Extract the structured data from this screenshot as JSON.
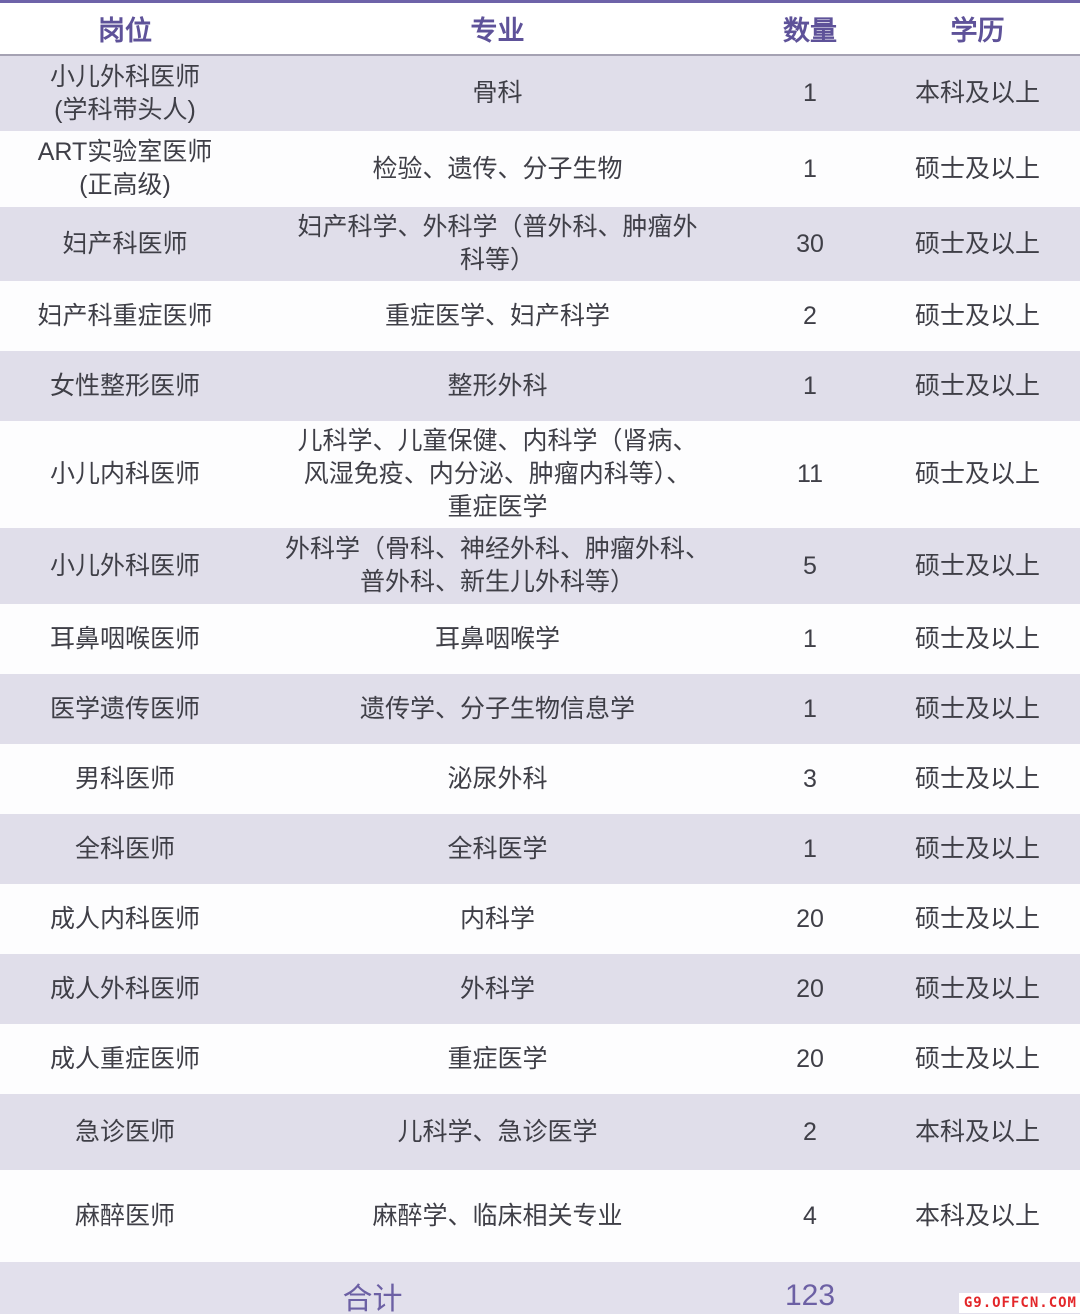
{
  "table": {
    "columns": [
      "岗位",
      "专业",
      "数量",
      "学历"
    ],
    "rows": [
      {
        "position": "小儿外科医师\n(学科带头人)",
        "major": "骨科",
        "count": "1",
        "education": "本科及以上"
      },
      {
        "position": "ART实验室医师\n(正高级)",
        "major": "检验、遗传、分子生物",
        "count": "1",
        "education": "硕士及以上"
      },
      {
        "position": "妇产科医师",
        "major": "妇产科学、外科学（普外科、肿瘤外\n科等）",
        "count": "30",
        "education": "硕士及以上"
      },
      {
        "position": "妇产科重症医师",
        "major": "重症医学、妇产科学",
        "count": "2",
        "education": "硕士及以上"
      },
      {
        "position": "女性整形医师",
        "major": "整形外科",
        "count": "1",
        "education": "硕士及以上"
      },
      {
        "position": "小儿内科医师",
        "major": "儿科学、儿童保健、内科学（肾病、\n风湿免疫、内分泌、肿瘤内科等）、\n重症医学",
        "count": "11",
        "education": "硕士及以上"
      },
      {
        "position": "小儿外科医师",
        "major": "外科学（骨科、神经外科、肿瘤外科、\n普外科、新生儿外科等）",
        "count": "5",
        "education": "硕士及以上"
      },
      {
        "position": "耳鼻咽喉医师",
        "major": "耳鼻咽喉学",
        "count": "1",
        "education": "硕士及以上"
      },
      {
        "position": "医学遗传医师",
        "major": "遗传学、分子生物信息学",
        "count": "1",
        "education": "硕士及以上"
      },
      {
        "position": "男科医师",
        "major": "泌尿外科",
        "count": "3",
        "education": "硕士及以上"
      },
      {
        "position": "全科医师",
        "major": "全科医学",
        "count": "1",
        "education": "硕士及以上"
      },
      {
        "position": "成人内科医师",
        "major": "内科学",
        "count": "20",
        "education": "硕士及以上"
      },
      {
        "position": "成人外科医师",
        "major": "外科学",
        "count": "20",
        "education": "硕士及以上"
      },
      {
        "position": "成人重症医师",
        "major": "重症医学",
        "count": "20",
        "education": "硕士及以上"
      },
      {
        "position": "急诊医师",
        "major": "儿科学、急诊医学",
        "count": "2",
        "education": "本科及以上"
      },
      {
        "position": "麻醉医师",
        "major": "麻醉学、临床相关专业",
        "count": "4",
        "education": "本科及以上"
      }
    ],
    "footer": {
      "label": "合计",
      "total": "123"
    }
  },
  "watermark": "G9.OFFCN.COM",
  "colors": {
    "accent_purple": "#5e5299",
    "footer_purple": "#6c60a4",
    "row_alt_background": "#e0deea",
    "top_border": "#6e63a9",
    "bottom_border": "#665b9d",
    "header_underline": "#a5a2b3",
    "body_text": "#3f3f47",
    "watermark_red": "#e32629"
  }
}
